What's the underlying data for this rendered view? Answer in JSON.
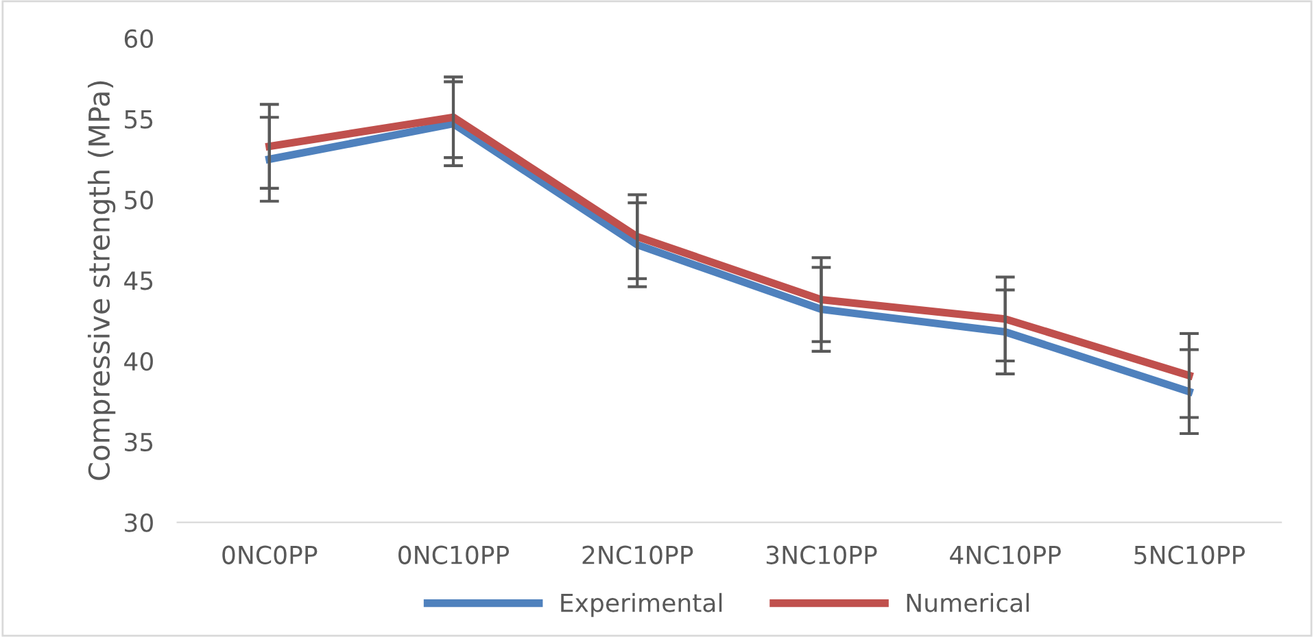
{
  "chart_data": {
    "type": "line",
    "ylabel": "Compressive strength (MPa)",
    "categories": [
      "0NC0PP",
      "0NC10PP",
      "2NC10PP",
      "3NC10PP",
      "4NC10PP",
      "5NC10PP"
    ],
    "series": [
      {
        "name": "Experimental",
        "color": "#4f81bd",
        "values": [
          52.5,
          54.7,
          47.2,
          43.2,
          41.8,
          38.1
        ],
        "errors": [
          2.6,
          2.6,
          2.6,
          2.6,
          2.6,
          2.6
        ]
      },
      {
        "name": "Numerical",
        "color": "#c0504d",
        "values": [
          53.3,
          55.1,
          47.7,
          43.8,
          42.6,
          39.1
        ],
        "errors": [
          2.6,
          2.5,
          2.6,
          2.6,
          2.6,
          2.6
        ]
      }
    ],
    "ylim": [
      30,
      60
    ],
    "yticks": [
      30,
      35,
      40,
      45,
      50,
      55,
      60
    ],
    "grid": false,
    "legend": "bottom",
    "marker": "none",
    "line_style": "solid"
  }
}
